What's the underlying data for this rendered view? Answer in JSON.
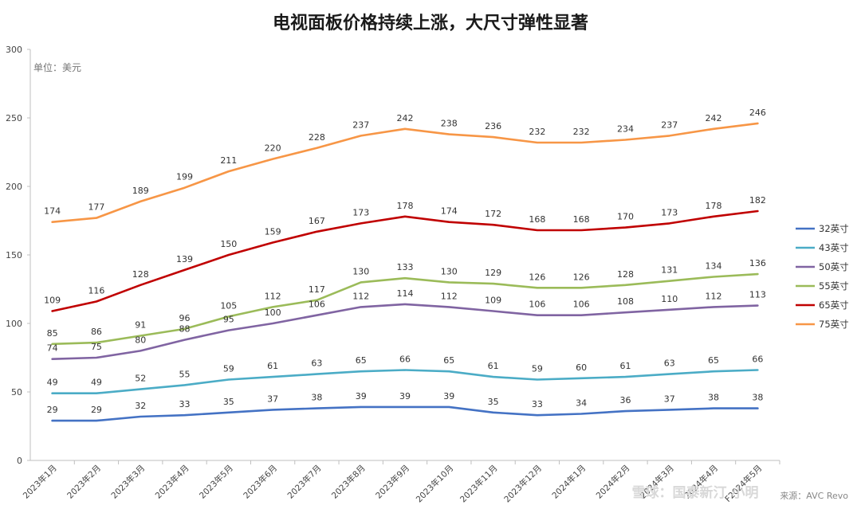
{
  "chart_data": {
    "type": "line",
    "title": "电视面板价格持续上涨，大尺寸弹性显著",
    "unit_label": "单位：美元",
    "ylim": [
      0,
      300
    ],
    "yticks": [
      0,
      50,
      100,
      150,
      200,
      250,
      300
    ],
    "grid": false,
    "legend_position": "right",
    "categories": [
      "2023年1月",
      "2023年2月",
      "2023年3月",
      "2023年4月",
      "2023年5月",
      "2023年6月",
      "2023年7月",
      "2023年8月",
      "2023年9月",
      "2023年10月",
      "2023年11月",
      "2023年12月",
      "2024年1月",
      "2024年2月",
      "2024年3月",
      "2024年4月",
      "F2024年5月"
    ],
    "series": [
      {
        "name": "32英寸",
        "color": "#4472c4",
        "values": [
          29,
          29,
          32,
          33,
          35,
          37,
          38,
          39,
          39,
          39,
          35,
          33,
          34,
          36,
          37,
          38,
          38
        ]
      },
      {
        "name": "43英寸",
        "color": "#4bacc6",
        "values": [
          49,
          49,
          52,
          55,
          59,
          61,
          63,
          65,
          66,
          65,
          61,
          59,
          60,
          61,
          63,
          65,
          66
        ]
      },
      {
        "name": "50英寸",
        "color": "#8064a2",
        "values": [
          74,
          75,
          80,
          88,
          95,
          100,
          106,
          112,
          114,
          112,
          109,
          106,
          106,
          108,
          110,
          112,
          113
        ]
      },
      {
        "name": "55英寸",
        "color": "#9bbb59",
        "values": [
          85,
          86,
          91,
          96,
          105,
          112,
          117,
          130,
          133,
          130,
          129,
          126,
          126,
          128,
          131,
          134,
          136
        ]
      },
      {
        "name": "65英寸",
        "color": "#c00000",
        "values": [
          109,
          116,
          128,
          139,
          150,
          159,
          167,
          173,
          178,
          174,
          172,
          168,
          168,
          170,
          173,
          178,
          182
        ]
      },
      {
        "name": "75英寸",
        "color": "#f79646",
        "values": [
          174,
          177,
          189,
          199,
          211,
          220,
          228,
          237,
          242,
          238,
          236,
          232,
          232,
          234,
          237,
          242,
          246
        ]
      }
    ],
    "source": "来源：AVC Revo"
  },
  "watermark": "雪球：国泰新汀 小明"
}
